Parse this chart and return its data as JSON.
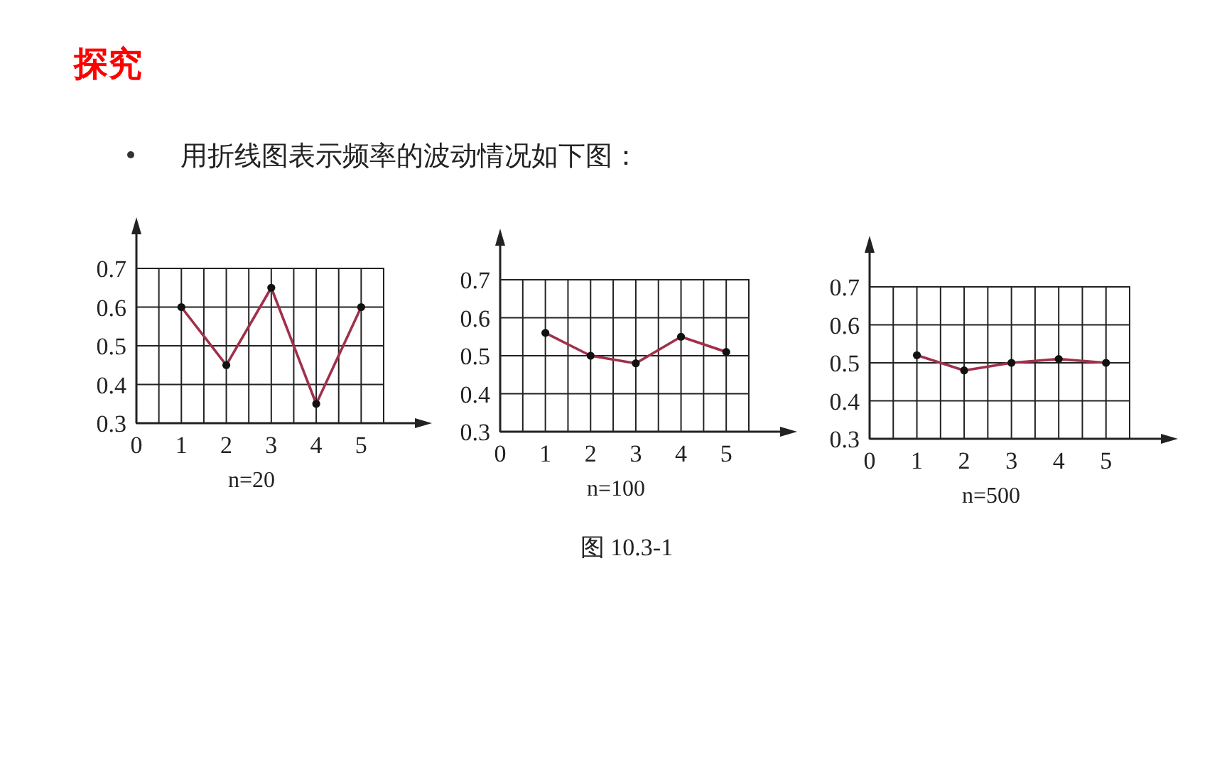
{
  "chart_data": [
    {
      "type": "line",
      "title": "探究",
      "subtitle": "用折线图表示频率的波动情况如下图：",
      "xlabel": "n=20",
      "x": [
        1,
        2,
        3,
        4,
        5
      ],
      "series": [
        {
          "color": "#a0304a",
          "values": [
            0.6,
            0.45,
            0.65,
            0.35,
            0.6
          ]
        }
      ],
      "xlim": [
        0,
        5.5
      ],
      "xticks": [
        0,
        {
          "value": 0.5,
          "label": null
        },
        1,
        {
          "value": 1.5,
          "label": null
        },
        2,
        {
          "value": 2.5,
          "label": null
        },
        3,
        {
          "value": 3.5,
          "label": null
        },
        4,
        {
          "value": 4.5,
          "label": null
        },
        5,
        {
          "value": 5.5,
          "label": null
        }
      ],
      "ylim": [
        0.3,
        0.7
      ],
      "yticks": [
        0.3,
        0.4,
        0.5,
        0.6,
        0.7
      ],
      "grid": true,
      "marker": "circle",
      "line_style": "solid"
    },
    {
      "type": "line",
      "xlabel": "n=100",
      "annotations": [
        "图 10.3-1"
      ],
      "x": [
        1,
        2,
        3,
        4,
        5
      ],
      "series": [
        {
          "color": "#a0304a",
          "values": [
            0.56,
            0.5,
            0.48,
            0.55,
            0.51
          ]
        }
      ],
      "xlim": [
        0,
        5.5
      ],
      "xticks": [
        0,
        {
          "value": 0.5,
          "label": null
        },
        1,
        {
          "value": 1.5,
          "label": null
        },
        2,
        {
          "value": 2.5,
          "label": null
        },
        3,
        {
          "value": 3.5,
          "label": null
        },
        4,
        {
          "value": 4.5,
          "label": null
        },
        5,
        {
          "value": 5.5,
          "label": null
        }
      ],
      "ylim": [
        0.3,
        0.7
      ],
      "yticks": [
        0.3,
        0.4,
        0.5,
        0.6,
        0.7
      ],
      "grid": true,
      "marker": "circle",
      "line_style": "solid"
    },
    {
      "type": "line",
      "xlabel": "n=500",
      "x": [
        1,
        2,
        3,
        4,
        5
      ],
      "series": [
        {
          "color": "#a0304a",
          "values": [
            0.52,
            0.48,
            0.5,
            0.51,
            0.5
          ]
        }
      ],
      "xlim": [
        0,
        5.5
      ],
      "xticks": [
        0,
        {
          "value": 0.5,
          "label": null
        },
        1,
        {
          "value": 1.5,
          "label": null
        },
        2,
        {
          "value": 2.5,
          "label": null
        },
        3,
        {
          "value": 3.5,
          "label": null
        },
        4,
        {
          "value": 4.5,
          "label": null
        },
        5,
        {
          "value": 5.5,
          "label": null
        }
      ],
      "ylim": [
        0.3,
        0.7
      ],
      "yticks": [
        0.3,
        0.4,
        0.5,
        0.6,
        0.7
      ],
      "grid": true,
      "marker": "circle",
      "line_style": "solid"
    }
  ]
}
